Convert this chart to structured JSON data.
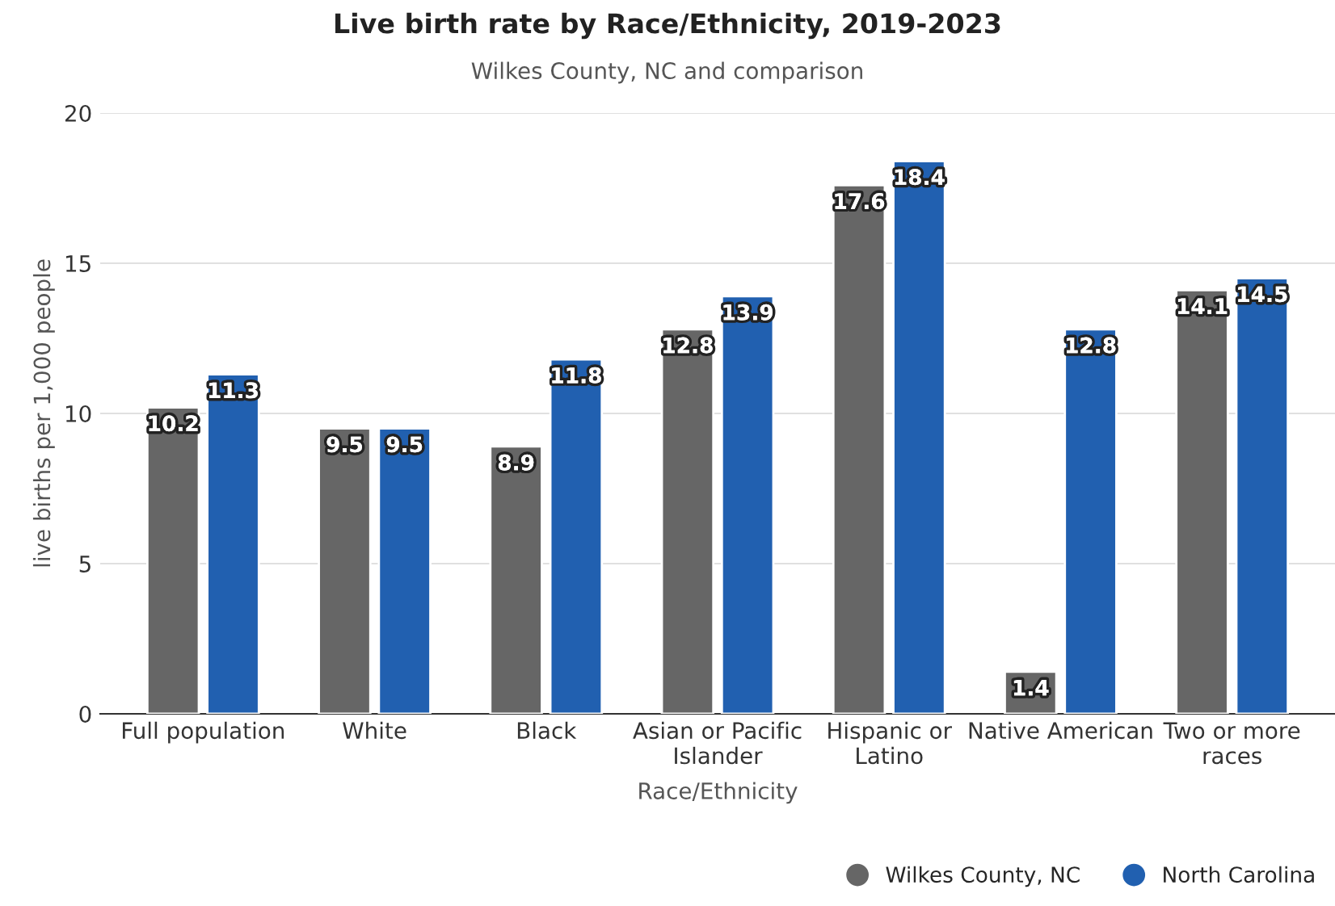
{
  "chart_data": {
    "type": "bar",
    "title": "Live birth rate by Race/Ethnicity, 2019-2023",
    "subtitle": "Wilkes County, NC and comparison",
    "xlabel": "Race/Ethnicity",
    "ylabel": "live births per 1,000 people",
    "categories": [
      "Full population",
      "White",
      "Black",
      "Asian or Pacific\nIslander",
      "Hispanic or\nLatino",
      "Native American",
      "Two or more\nraces"
    ],
    "series": [
      {
        "name": "Wilkes County, NC",
        "color": "#666666",
        "values": [
          10.2,
          9.5,
          8.9,
          12.8,
          17.6,
          1.4,
          14.1
        ]
      },
      {
        "name": "North Carolina",
        "color": "#2160b0",
        "values": [
          11.3,
          9.5,
          11.8,
          13.9,
          18.4,
          12.8,
          14.5
        ]
      }
    ],
    "ylim": [
      0,
      20
    ],
    "yticks": [
      0,
      5,
      10,
      15,
      20
    ],
    "grid": "y",
    "legend": "bottom right",
    "data_labels": true
  }
}
